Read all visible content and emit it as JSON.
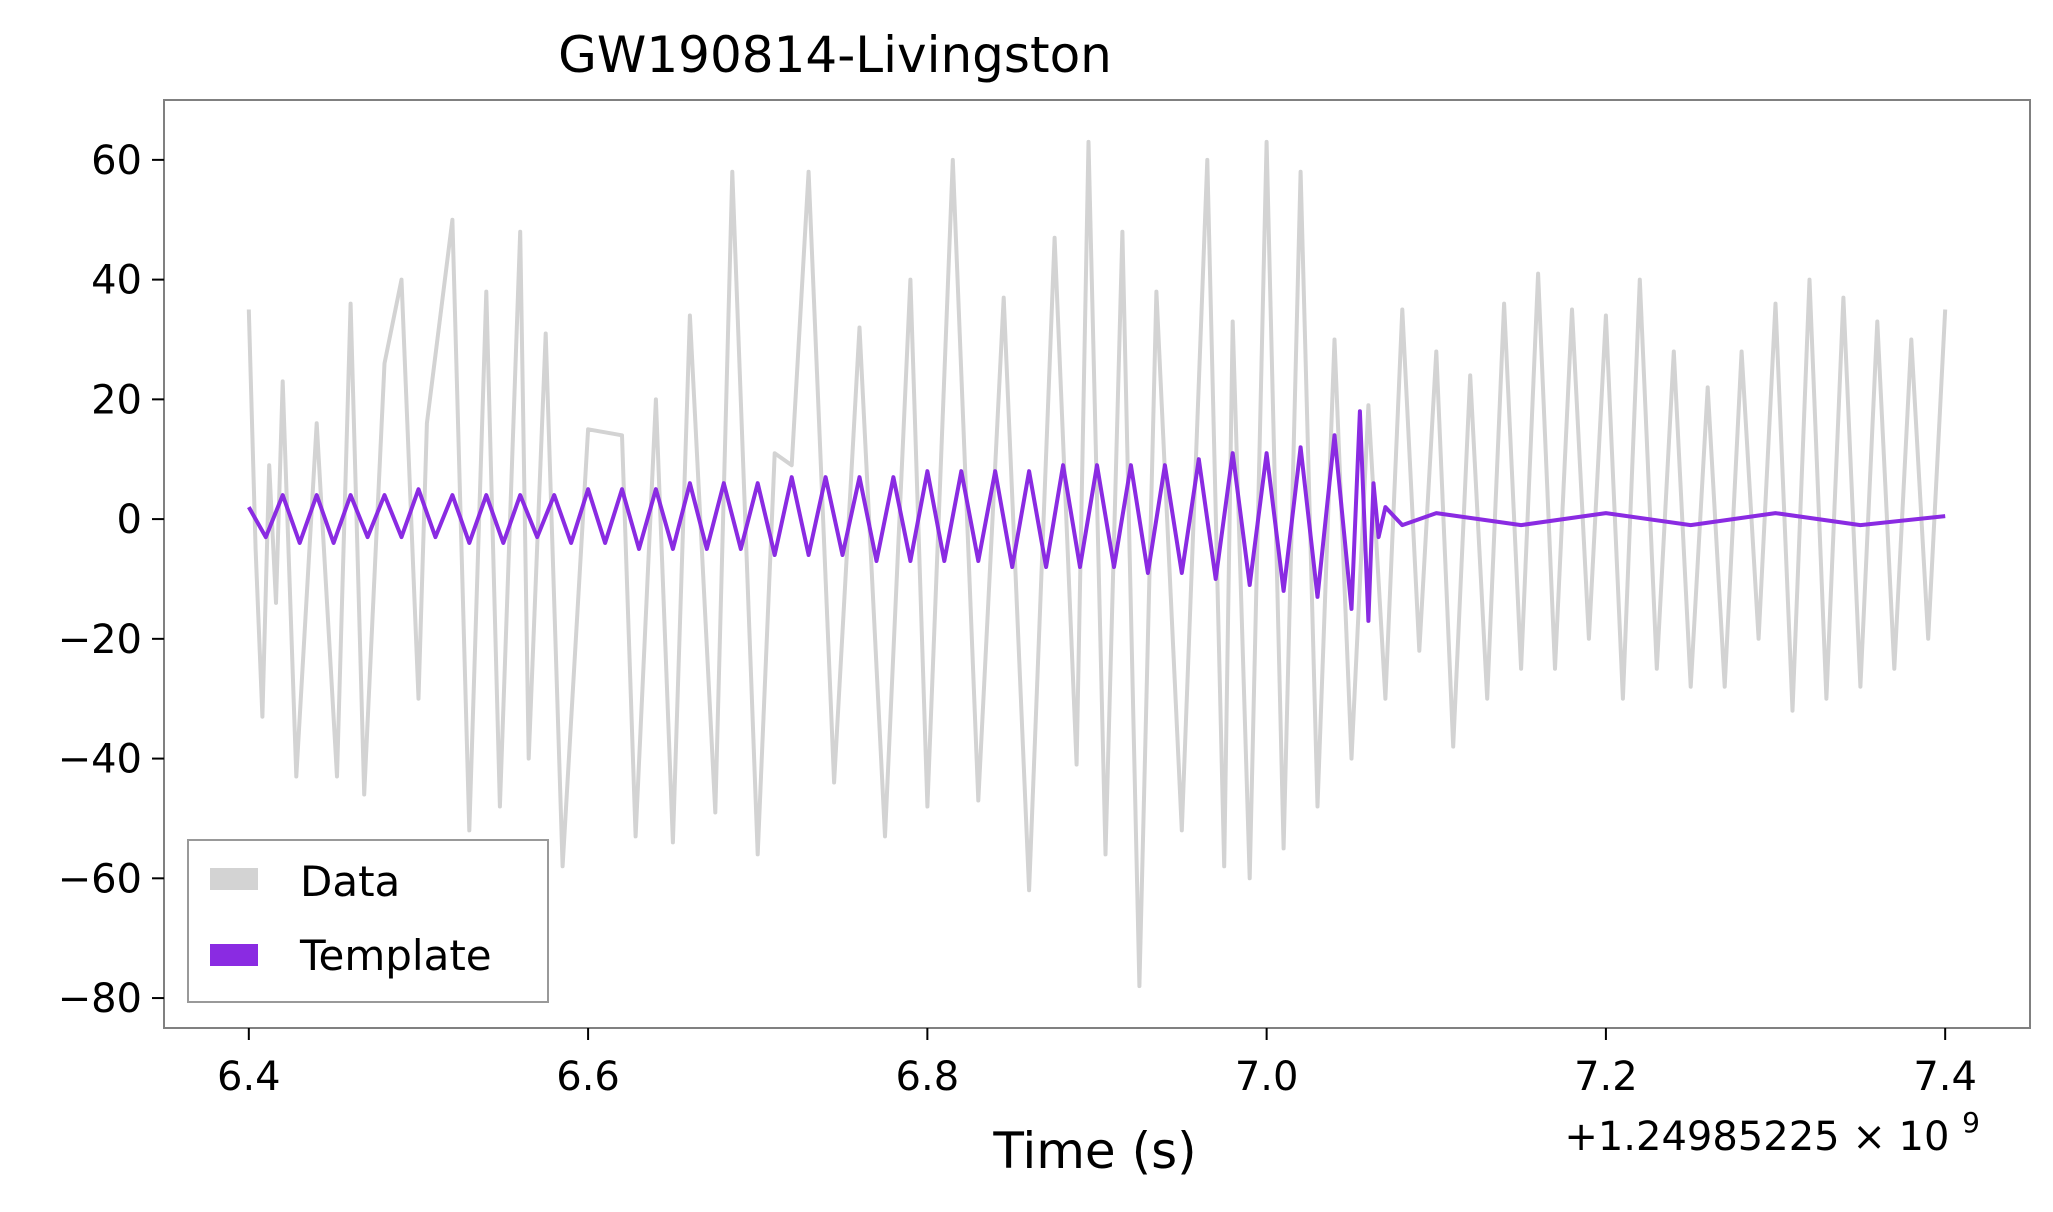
{
  "chart_data": {
    "type": "line",
    "title": "GW190814-Livingston",
    "xlabel": "Time (s)",
    "ylabel": "",
    "x_offset_label": "+1.24985225 × 10",
    "x_offset_exponent": "9",
    "xlim": [
      6.35,
      7.45
    ],
    "ylim": [
      -85,
      70
    ],
    "x_ticks": [
      6.4,
      6.6,
      6.8,
      7.0,
      7.2,
      7.4
    ],
    "x_tick_labels": [
      "6.4",
      "6.6",
      "6.8",
      "7.0",
      "7.2",
      "7.4"
    ],
    "y_ticks": [
      60,
      40,
      20,
      0,
      -20,
      -40,
      -60,
      -80
    ],
    "y_tick_labels": [
      "60",
      "40",
      "20",
      "0",
      "−20",
      "−40",
      "−60",
      "−80"
    ],
    "legend_position": "lower-left",
    "grid": false,
    "series": [
      {
        "name": "Data",
        "color": "#d3d3d3",
        "x": [
          6.4,
          6.404,
          6.408,
          6.412,
          6.416,
          6.42,
          6.428,
          6.44,
          6.452,
          6.46,
          6.468,
          6.48,
          6.49,
          6.5,
          6.505,
          6.52,
          6.53,
          6.54,
          6.548,
          6.56,
          6.565,
          6.575,
          6.585,
          6.6,
          6.62,
          6.628,
          6.64,
          6.65,
          6.66,
          6.675,
          6.685,
          6.7,
          6.71,
          6.72,
          6.73,
          6.745,
          6.76,
          6.775,
          6.79,
          6.8,
          6.815,
          6.83,
          6.845,
          6.86,
          6.875,
          6.888,
          6.895,
          6.905,
          6.915,
          6.925,
          6.935,
          6.95,
          6.965,
          6.975,
          6.98,
          6.99,
          7.0,
          7.01,
          7.02,
          7.03,
          7.04,
          7.05,
          7.06,
          7.07,
          7.08,
          7.09,
          7.1,
          7.11,
          7.12,
          7.13,
          7.14,
          7.15,
          7.16,
          7.17,
          7.18,
          7.19,
          7.2,
          7.21,
          7.22,
          7.23,
          7.24,
          7.25,
          7.26,
          7.27,
          7.28,
          7.29,
          7.3,
          7.31,
          7.32,
          7.33,
          7.34,
          7.35,
          7.36,
          7.37,
          7.38,
          7.39,
          7.4
        ],
        "y": [
          35,
          -5,
          -33,
          9,
          -14,
          23,
          -43,
          16,
          -43,
          36,
          -46,
          26,
          40,
          -30,
          16,
          50,
          -52,
          38,
          -48,
          48,
          -40,
          31,
          -58,
          15,
          14,
          -53,
          20,
          -54,
          34,
          -49,
          58,
          -56,
          11,
          9,
          58,
          -44,
          32,
          -53,
          40,
          -48,
          60,
          -47,
          37,
          -62,
          47,
          -41,
          63,
          -56,
          48,
          -78,
          38,
          -52,
          60,
          -58,
          33,
          -60,
          63,
          -55,
          58,
          -48,
          30,
          -40,
          19,
          -30,
          35,
          -22,
          28,
          -38,
          24,
          -30,
          36,
          -25,
          41,
          -25,
          35,
          -20,
          34,
          -30,
          40,
          -25,
          28,
          -28,
          22,
          -28,
          28,
          -20,
          36,
          -32,
          40,
          -30,
          37,
          -28,
          33,
          -25,
          30,
          -20,
          35
        ]
      },
      {
        "name": "Template",
        "color": "#8a2be2",
        "x": [
          6.4,
          6.41,
          6.42,
          6.43,
          6.44,
          6.45,
          6.46,
          6.47,
          6.48,
          6.49,
          6.5,
          6.51,
          6.52,
          6.53,
          6.54,
          6.55,
          6.56,
          6.57,
          6.58,
          6.59,
          6.6,
          6.61,
          6.62,
          6.63,
          6.64,
          6.65,
          6.66,
          6.67,
          6.68,
          6.69,
          6.7,
          6.71,
          6.72,
          6.73,
          6.74,
          6.75,
          6.76,
          6.77,
          6.78,
          6.79,
          6.8,
          6.81,
          6.82,
          6.83,
          6.84,
          6.85,
          6.86,
          6.87,
          6.88,
          6.89,
          6.9,
          6.91,
          6.92,
          6.93,
          6.94,
          6.95,
          6.96,
          6.97,
          6.98,
          6.99,
          7.0,
          7.01,
          7.02,
          7.03,
          7.04,
          7.05,
          7.055,
          7.06,
          7.063,
          7.066,
          7.07,
          7.08,
          7.1,
          7.15,
          7.2,
          7.25,
          7.3,
          7.35,
          7.4
        ],
        "y": [
          2,
          -3,
          4,
          -4,
          4,
          -4,
          4,
          -3,
          4,
          -3,
          5,
          -3,
          4,
          -4,
          4,
          -4,
          4,
          -3,
          4,
          -4,
          5,
          -4,
          5,
          -5,
          5,
          -5,
          6,
          -5,
          6,
          -5,
          6,
          -6,
          7,
          -6,
          7,
          -6,
          7,
          -7,
          7,
          -7,
          8,
          -7,
          8,
          -7,
          8,
          -8,
          8,
          -8,
          9,
          -8,
          9,
          -8,
          9,
          -9,
          9,
          -9,
          10,
          -10,
          11,
          -11,
          11,
          -12,
          12,
          -13,
          14,
          -15,
          18,
          -17,
          6,
          -3,
          2,
          -1,
          1,
          -1,
          1,
          -1,
          1,
          -1,
          0.5
        ]
      }
    ]
  }
}
